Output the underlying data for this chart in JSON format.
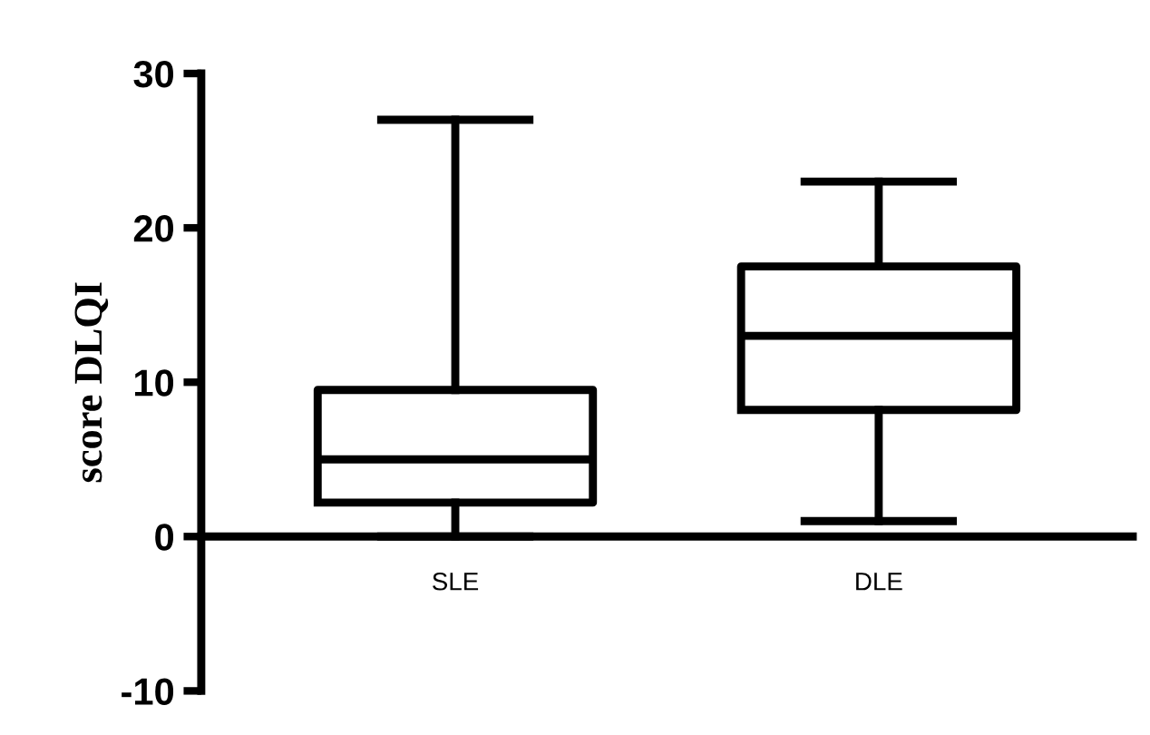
{
  "chart_data": {
    "type": "box",
    "ylabel": "score DLQI",
    "categories": [
      "SLE",
      "DLE"
    ],
    "boxes": [
      {
        "low": 0,
        "q1": 2.2,
        "median": 5,
        "q3": 9.5,
        "high": 27
      },
      {
        "low": 1,
        "q1": 8.2,
        "median": 13,
        "q3": 17.5,
        "high": 23
      }
    ],
    "color": "#000000",
    "ylim": [
      -10,
      30
    ],
    "yticks": [
      -10,
      0,
      10,
      20,
      30
    ],
    "grid": false,
    "legend": false
  }
}
